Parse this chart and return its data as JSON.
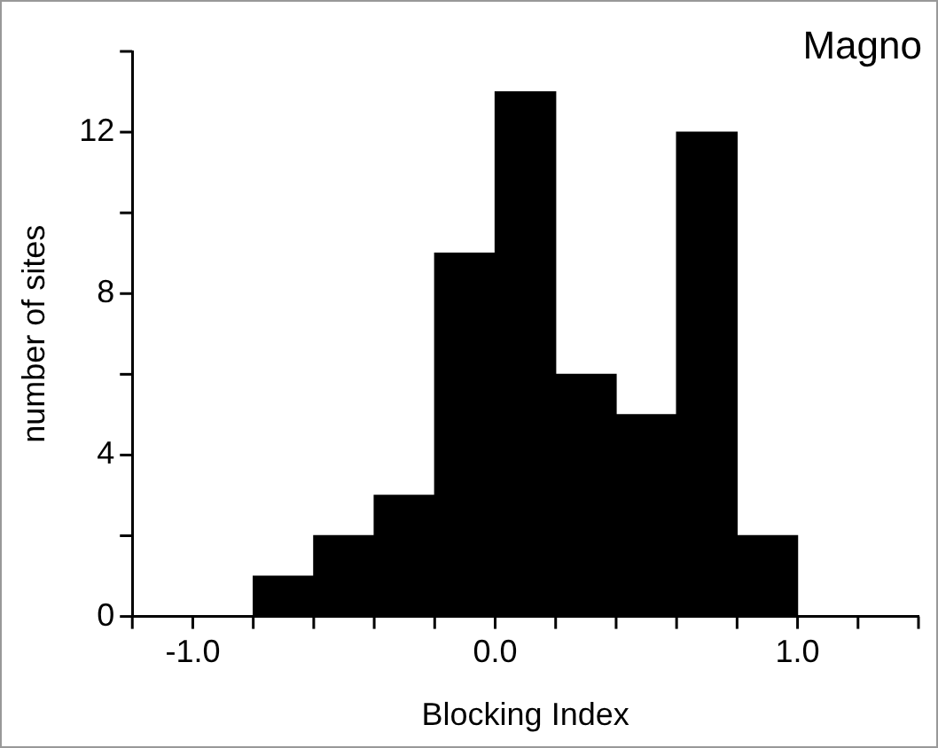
{
  "chart_data": {
    "type": "histogram",
    "title": "Magno",
    "xlabel": "Blocking Index",
    "ylabel": "number of sites",
    "bins": [
      -0.8,
      -0.6,
      -0.4,
      -0.2,
      0.0,
      0.2,
      0.4,
      0.6,
      0.8,
      1.0
    ],
    "values": [
      1,
      2,
      3,
      9,
      13,
      6,
      5,
      12,
      2
    ],
    "color": "#000000",
    "xlim": [
      -1.2,
      1.4
    ],
    "xticks": [
      {
        "value": -1.2,
        "label": null
      },
      {
        "value": -1.0,
        "label": "-1.0"
      },
      {
        "value": -0.8,
        "label": null
      },
      {
        "value": -0.6,
        "label": null
      },
      {
        "value": -0.4,
        "label": null
      },
      {
        "value": -0.2,
        "label": null
      },
      {
        "value": 0.0,
        "label": "0.0"
      },
      {
        "value": 0.2,
        "label": null
      },
      {
        "value": 0.4,
        "label": null
      },
      {
        "value": 0.6,
        "label": null
      },
      {
        "value": 0.8,
        "label": null
      },
      {
        "value": 1.0,
        "label": "1.0"
      },
      {
        "value": 1.2,
        "label": null
      },
      {
        "value": 1.4,
        "label": null
      }
    ],
    "ylim": [
      0,
      14
    ],
    "yticks": [
      0,
      {
        "value": 2,
        "label": null
      },
      4,
      {
        "value": 6,
        "label": null
      },
      8,
      {
        "value": 10,
        "label": null
      },
      12,
      {
        "value": 14,
        "label": null
      }
    ],
    "grid": false
  }
}
